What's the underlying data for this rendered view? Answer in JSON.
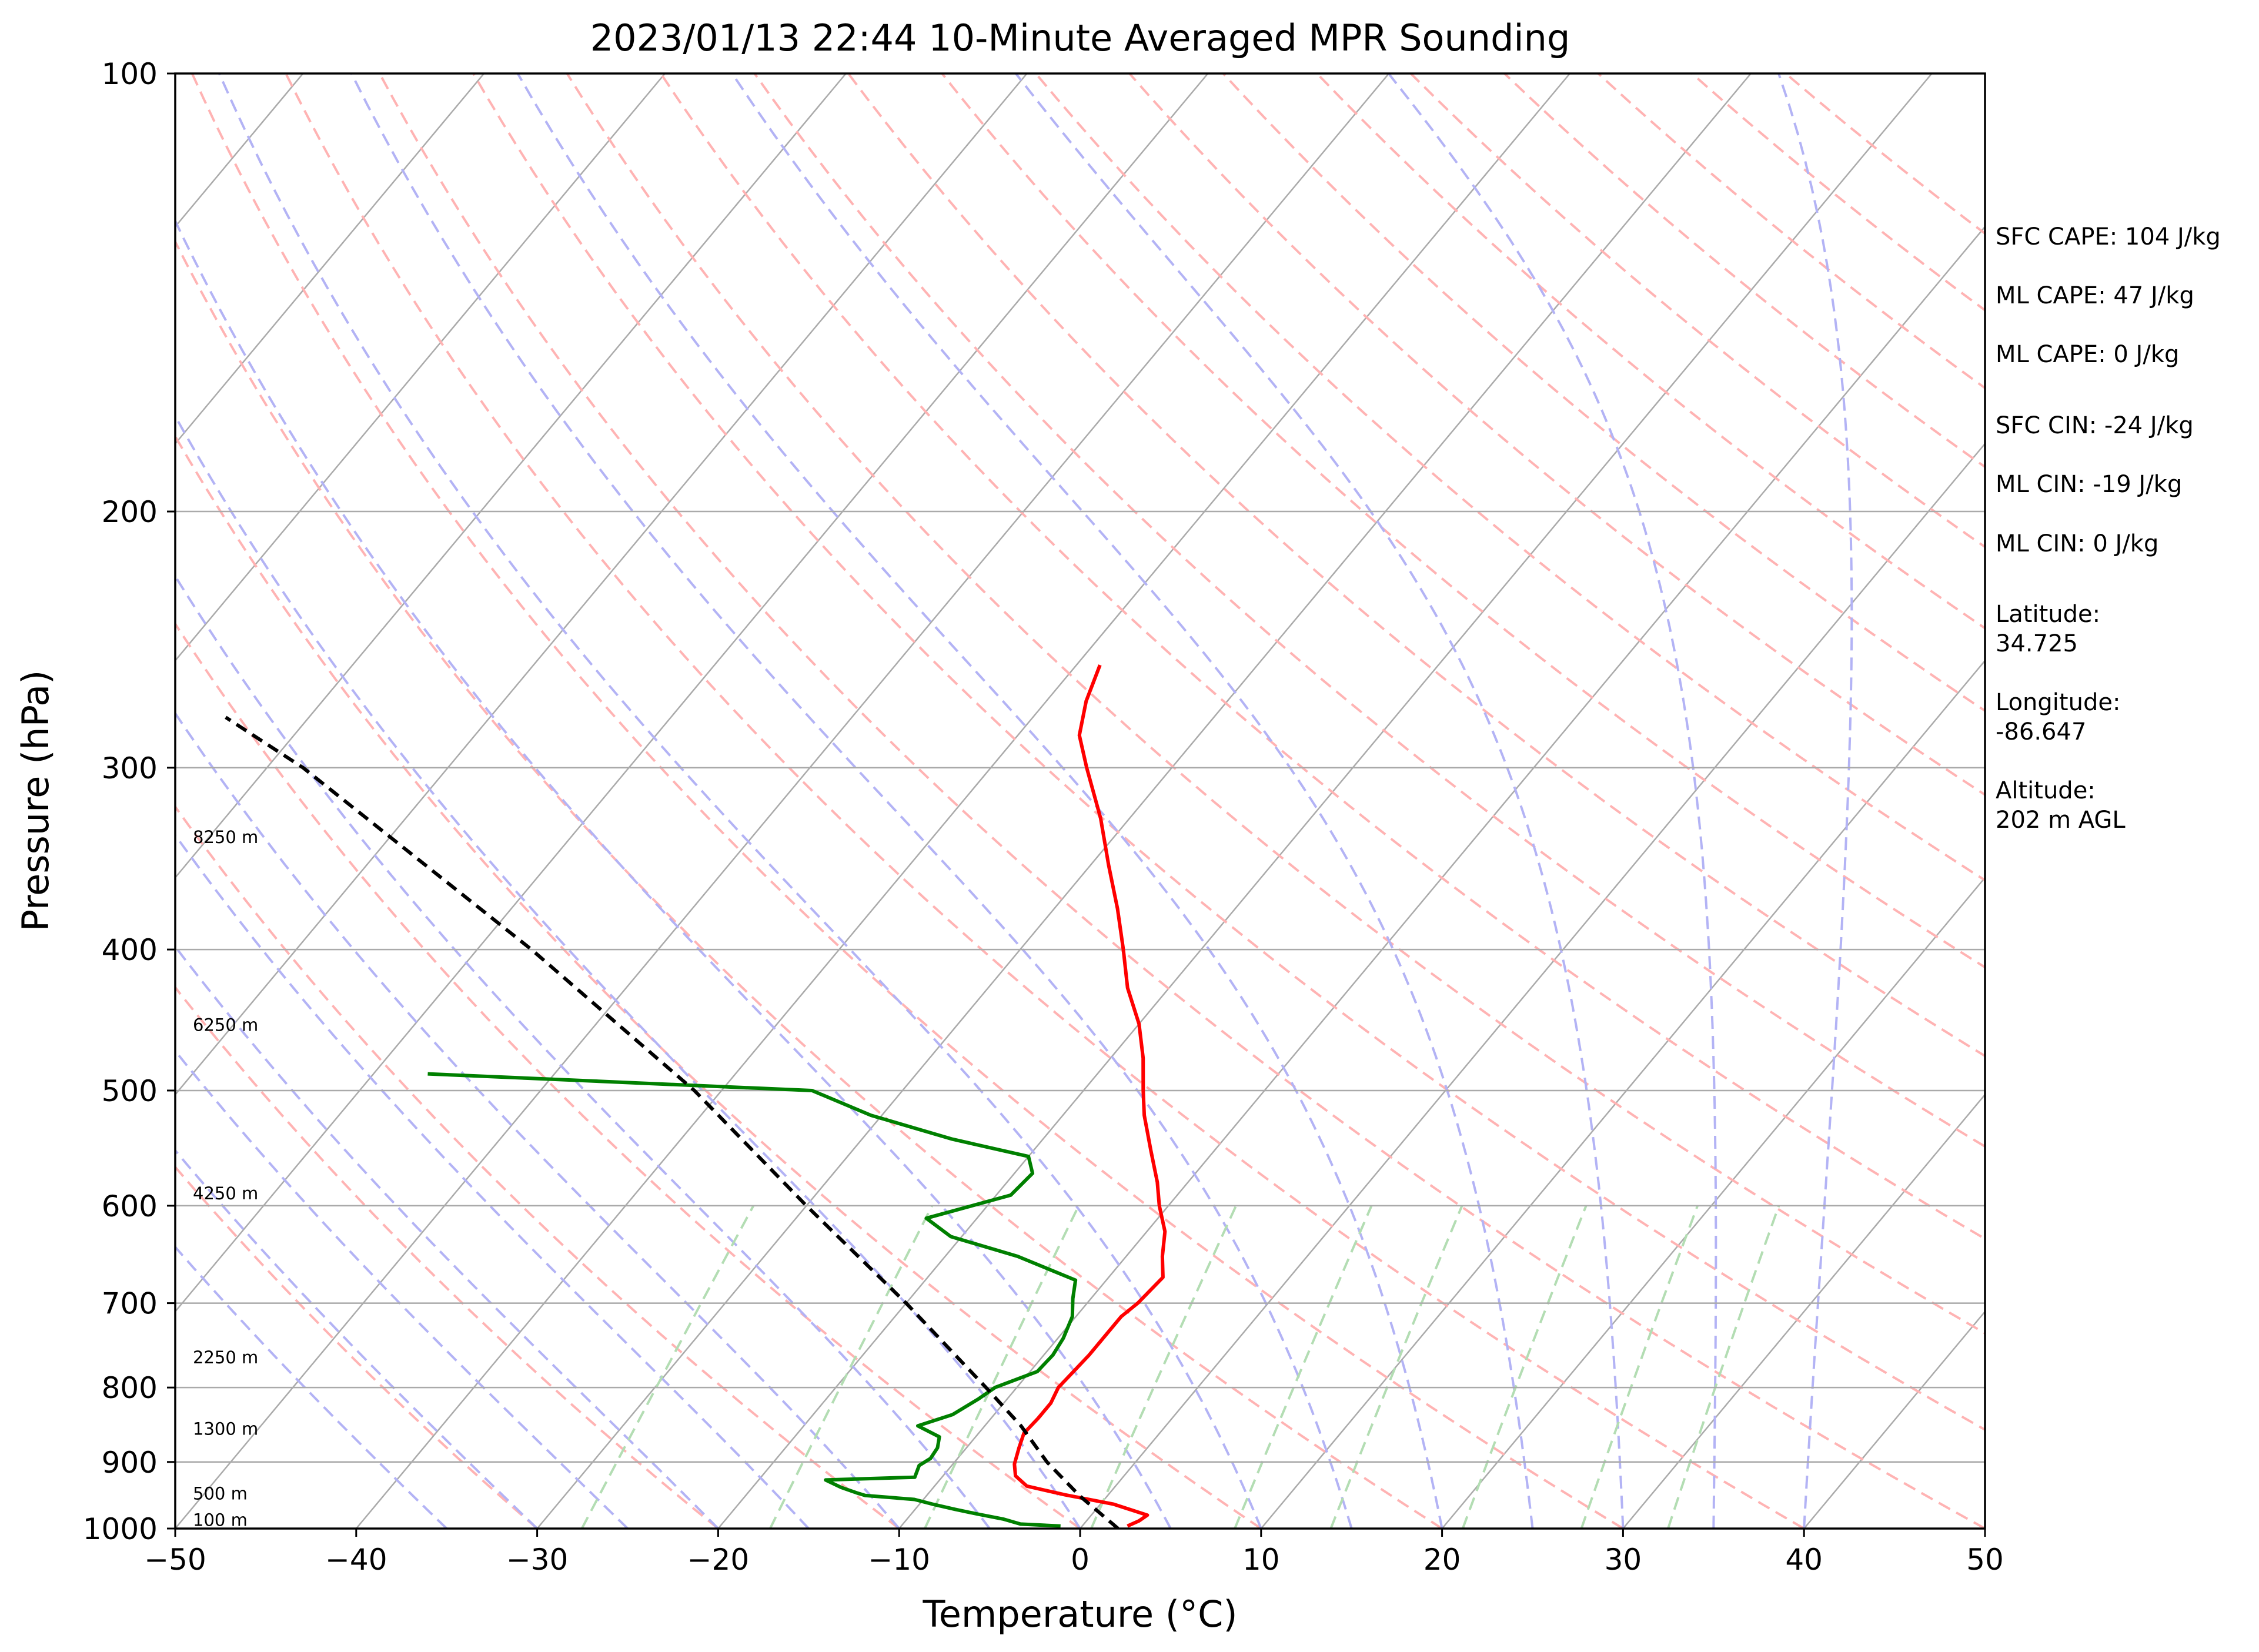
{
  "chart_data": {
    "type": "line",
    "subtype": "skew-T log-P diagram",
    "title": "2023/01/13 22:44 10-Minute Averaged MPR Sounding",
    "xlabel": "Temperature (°C)",
    "ylabel": "Pressure (hPa)",
    "xlim": [
      -50,
      50
    ],
    "ylim": [
      1000,
      100
    ],
    "y_scale": "log",
    "x_ticks": [
      "−50",
      "−40",
      "−30",
      "−20",
      "−10",
      "0",
      "10",
      "20",
      "30",
      "40",
      "50"
    ],
    "y_ticks": [
      "100",
      "200",
      "300",
      "400",
      "500",
      "600",
      "700",
      "800",
      "900",
      "1000"
    ],
    "grid": "pressure lines only",
    "isotherm_color": "#aaaaaa",
    "dry_adiabat_color": "#ffb3b3",
    "moist_adiabat_color": "#b3b3f5",
    "mixing_ratio_color": "#b3ddb3",
    "series": [
      {
        "role": "temperature",
        "color": "#ff0000",
        "points": [
          {
            "p": 996,
            "t": 2.5
          },
          {
            "p": 988,
            "t": 2.9
          },
          {
            "p": 979,
            "t": 3.1
          },
          {
            "p": 962,
            "t": 0.7
          },
          {
            "p": 948,
            "t": -2.4
          },
          {
            "p": 935,
            "t": -4.9
          },
          {
            "p": 920,
            "t": -6.0
          },
          {
            "p": 903,
            "t": -6.6
          },
          {
            "p": 880,
            "t": -7.1
          },
          {
            "p": 860,
            "t": -7.5
          },
          {
            "p": 840,
            "t": -7.4
          },
          {
            "p": 820,
            "t": -7.4
          },
          {
            "p": 800,
            "t": -7.7
          },
          {
            "p": 780,
            "t": -7.6
          },
          {
            "p": 760,
            "t": -7.5
          },
          {
            "p": 740,
            "t": -7.5
          },
          {
            "p": 715,
            "t": -7.5
          },
          {
            "p": 700,
            "t": -7.2
          },
          {
            "p": 672,
            "t": -7.0
          },
          {
            "p": 650,
            "t": -8.0
          },
          {
            "p": 625,
            "t": -9.0
          },
          {
            "p": 600,
            "t": -10.5
          },
          {
            "p": 578,
            "t": -11.7
          },
          {
            "p": 550,
            "t": -13.5
          },
          {
            "p": 520,
            "t": -15.5
          },
          {
            "p": 500,
            "t": -16.7
          },
          {
            "p": 475,
            "t": -18.2
          },
          {
            "p": 450,
            "t": -20.0
          },
          {
            "p": 425,
            "t": -22.3
          },
          {
            "p": 400,
            "t": -24.3
          },
          {
            "p": 375,
            "t": -26.5
          },
          {
            "p": 350,
            "t": -29.0
          },
          {
            "p": 325,
            "t": -31.6
          },
          {
            "p": 300,
            "t": -34.7
          },
          {
            "p": 285,
            "t": -36.6
          },
          {
            "p": 270,
            "t": -37.8
          },
          {
            "p": 255,
            "t": -38.7
          }
        ]
      },
      {
        "role": "dewpoint",
        "color": "#008000",
        "points": [
          {
            "p": 996,
            "t": -1.2
          },
          {
            "p": 993,
            "t": -3.5
          },
          {
            "p": 985,
            "t": -4.7
          },
          {
            "p": 978,
            "t": -6.2
          },
          {
            "p": 970,
            "t": -7.8
          },
          {
            "p": 962,
            "t": -9.3
          },
          {
            "p": 955,
            "t": -10.5
          },
          {
            "p": 949,
            "t": -13.4
          },
          {
            "p": 945,
            "t": -14.0
          },
          {
            "p": 937,
            "t": -15.1
          },
          {
            "p": 926,
            "t": -16.3
          },
          {
            "p": 922,
            "t": -11.5
          },
          {
            "p": 905,
            "t": -11.8
          },
          {
            "p": 895,
            "t": -11.5
          },
          {
            "p": 880,
            "t": -11.6
          },
          {
            "p": 865,
            "t": -12.0
          },
          {
            "p": 850,
            "t": -13.7
          },
          {
            "p": 835,
            "t": -12.3
          },
          {
            "p": 815,
            "t": -11.6
          },
          {
            "p": 800,
            "t": -11.2
          },
          {
            "p": 780,
            "t": -9.6
          },
          {
            "p": 760,
            "t": -9.5
          },
          {
            "p": 740,
            "t": -9.7
          },
          {
            "p": 715,
            "t": -10.2
          },
          {
            "p": 695,
            "t": -11.0
          },
          {
            "p": 675,
            "t": -11.7
          },
          {
            "p": 650,
            "t": -16.0
          },
          {
            "p": 630,
            "t": -20.6
          },
          {
            "p": 612,
            "t": -22.8
          },
          {
            "p": 590,
            "t": -19.2
          },
          {
            "p": 570,
            "t": -19.0
          },
          {
            "p": 555,
            "t": -20.0
          },
          {
            "p": 540,
            "t": -25.0
          },
          {
            "p": 520,
            "t": -30.6
          },
          {
            "p": 500,
            "t": -35.0
          },
          {
            "p": 487,
            "t": -57.0
          }
        ]
      },
      {
        "role": "parcel profile",
        "color": "#000000",
        "points": [
          {
            "p": 1000,
            "t": 2.1
          },
          {
            "p": 950,
            "t": -1.5
          },
          {
            "p": 900,
            "t": -4.9
          },
          {
            "p": 850,
            "t": -8.0
          },
          {
            "p": 800,
            "t": -11.7
          },
          {
            "p": 700,
            "t": -20.0
          },
          {
            "p": 600,
            "t": -30.0
          },
          {
            "p": 500,
            "t": -41.5
          },
          {
            "p": 400,
            "t": -57.0
          },
          {
            "p": 300,
            "t": -78.0
          },
          {
            "p": 277,
            "t": -84.6
          }
        ]
      }
    ],
    "height_labels": [
      {
        "p": 996,
        "text": "100 m"
      },
      {
        "p": 955,
        "text": "500 m"
      },
      {
        "p": 862,
        "text": "1300 m"
      },
      {
        "p": 770,
        "text": "2250 m"
      },
      {
        "p": 594,
        "text": "4250 m"
      },
      {
        "p": 455,
        "text": "6250 m"
      },
      {
        "p": 338,
        "text": "8250 m"
      }
    ]
  },
  "stats": [
    "SFC CAPE: 104 J/kg",
    "ML CAPE: 47 J/kg",
    "ML CAPE: 0 J/kg",
    "SFC CIN: -24 J/kg",
    "ML CIN: -19 J/kg",
    "ML CIN: 0 J/kg"
  ],
  "location": {
    "latitude_label": "Latitude:",
    "latitude_value": "34.725",
    "longitude_label": "Longitude:",
    "longitude_value": "-86.647",
    "altitude_label": "Altitude:",
    "altitude_value": "202 m AGL"
  }
}
